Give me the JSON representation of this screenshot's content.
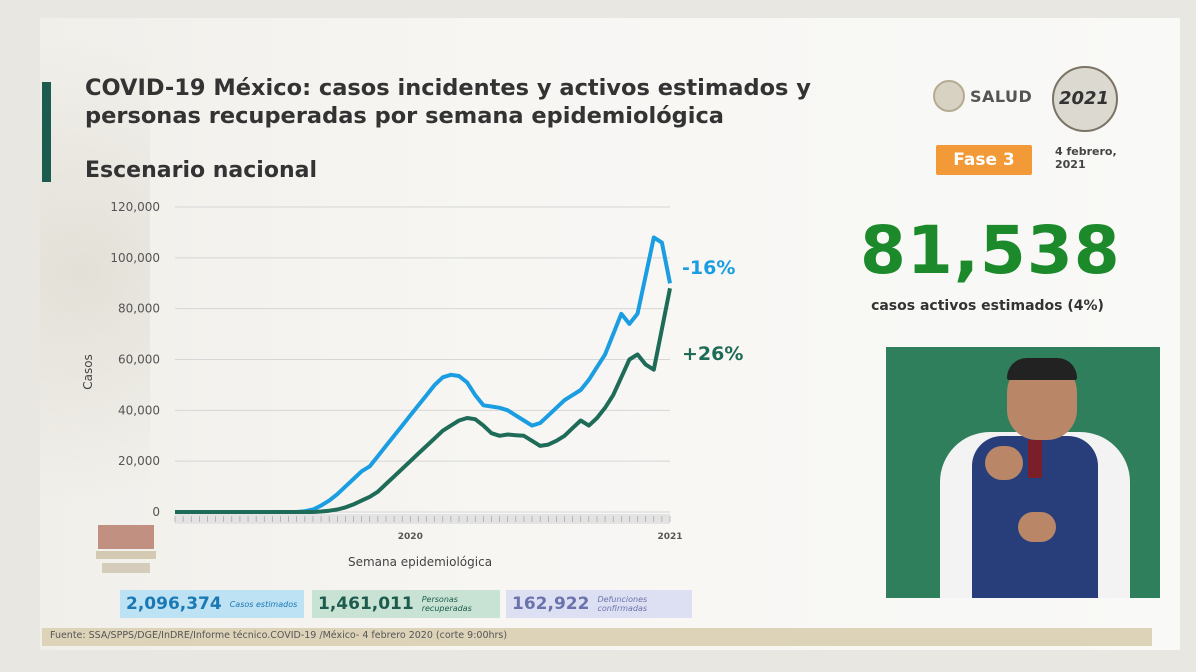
{
  "header": {
    "title": "COVID-19 México: casos incidentes y activos estimados y personas recuperadas por semana epidemiológica",
    "subtitle": "Escenario nacional"
  },
  "logos": {
    "salud": "SALUD",
    "year_badge": "2021"
  },
  "fase": {
    "label": "Fase 3",
    "color": "#f29a38"
  },
  "date": "4 febrero, 2021",
  "highlight": {
    "value": "81,538",
    "caption": "casos activos estimados (4%)",
    "color": "#1c8a2b"
  },
  "stats": [
    {
      "number": "2,096,374",
      "label": "Casos estimados"
    },
    {
      "number": "1,461,011",
      "label": "Personas recuperadas"
    },
    {
      "number": "162,922",
      "label": "Defunciones confirmadas"
    }
  ],
  "footer": {
    "source": "Fuente: SSA/SPPS/DGE/InDRE/Informe técnico.COVID-19 /México- 4 febrero 2020 (corte 9:00hrs)"
  },
  "chart_data": {
    "type": "line",
    "xlabel": "Semana epidemiológica",
    "ylabel": "Casos",
    "ylim": [
      0,
      120000
    ],
    "yticks": [
      "0",
      "20,000",
      "40,000",
      "60,000",
      "80,000",
      "100,000",
      "120,000"
    ],
    "year_labels": [
      "2020",
      "2021"
    ],
    "grid": true,
    "series": [
      {
        "color": "#1b9de2",
        "end_label": "-16%",
        "values": [
          0,
          0,
          0,
          0,
          0,
          0,
          0,
          0,
          0,
          0,
          0,
          0,
          0,
          0,
          0,
          0,
          300,
          1000,
          2500,
          4500,
          7000,
          10000,
          13000,
          16000,
          18000,
          22000,
          26000,
          30000,
          34000,
          38000,
          42000,
          46000,
          50000,
          53000,
          54000,
          53500,
          51000,
          46000,
          42000,
          41500,
          41000,
          40000,
          38000,
          36000,
          34000,
          35000,
          38000,
          41000,
          44000,
          46000,
          48000,
          52000,
          57000,
          62000,
          70000,
          78000,
          74000,
          78000,
          93000,
          108000,
          106000,
          90000
        ]
      },
      {
        "color": "#1e6b57",
        "end_label": "+26%",
        "values": [
          0,
          0,
          0,
          0,
          0,
          0,
          0,
          0,
          0,
          0,
          0,
          0,
          0,
          0,
          0,
          0,
          0,
          0,
          200,
          500,
          1000,
          1800,
          3000,
          4500,
          6000,
          8000,
          11000,
          14000,
          17000,
          20000,
          23000,
          26000,
          29000,
          32000,
          34000,
          36000,
          37000,
          36500,
          34000,
          31000,
          30000,
          30500,
          30200,
          30000,
          28000,
          26000,
          26500,
          28000,
          30000,
          33000,
          36000,
          34000,
          37000,
          41000,
          46000,
          53000,
          60000,
          62000,
          58000,
          56000,
          72000,
          88000
        ]
      }
    ]
  }
}
